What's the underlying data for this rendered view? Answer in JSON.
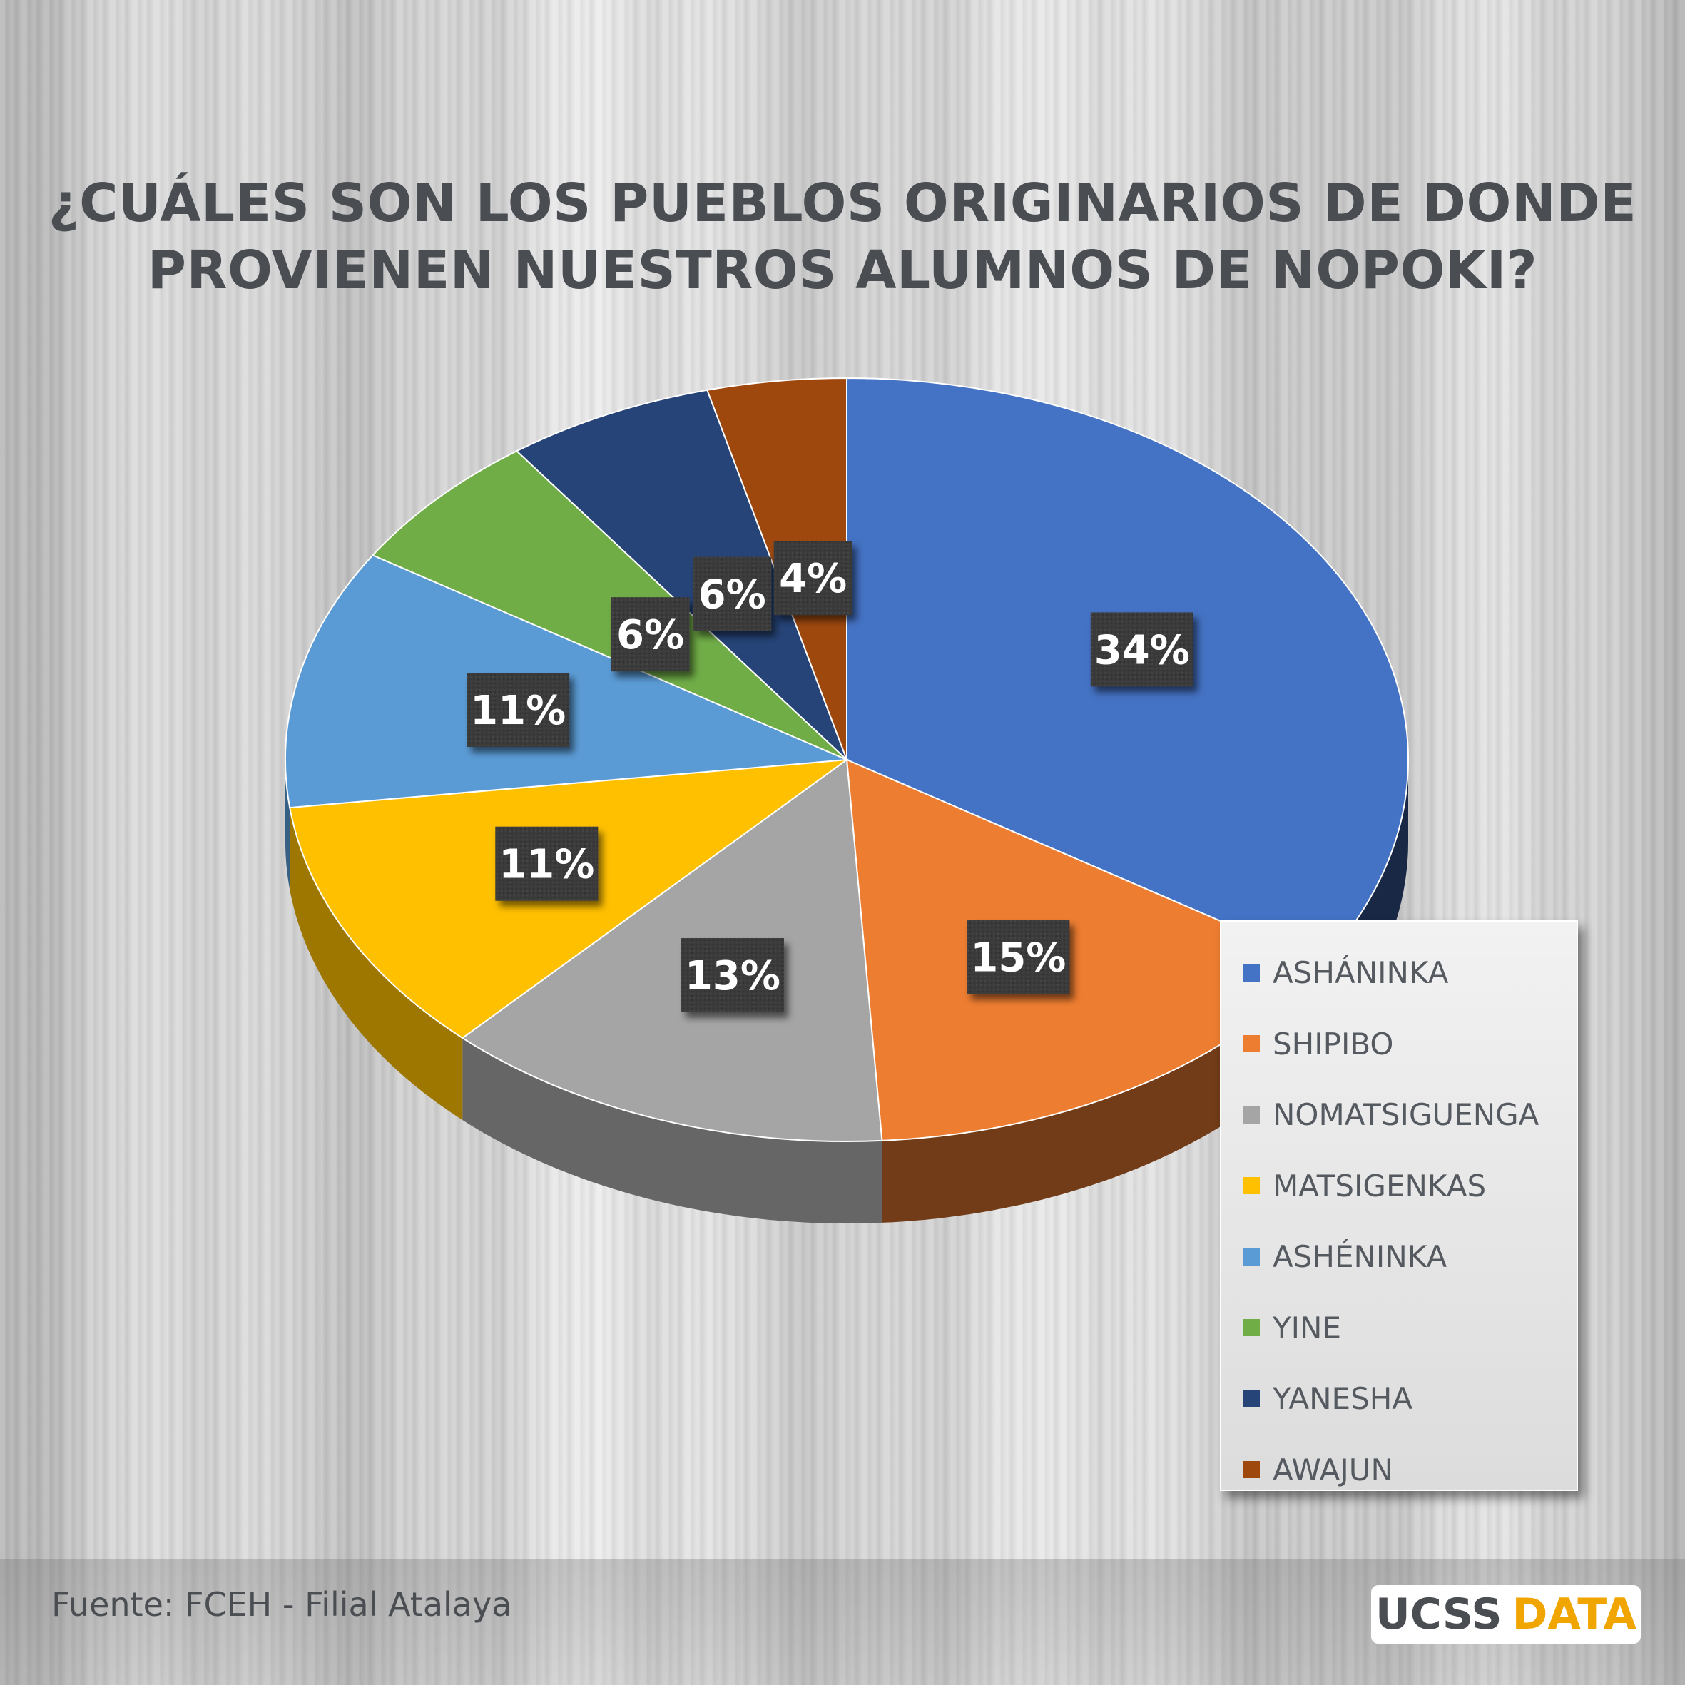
{
  "title": {
    "line1": "¿CUÁLES SON LOS PUEBLOS ORIGINARIOS DE DONDE",
    "line2": "PROVIENEN NUESTROS ALUMNOS DE NOPOKI?"
  },
  "chart_data": {
    "type": "pie",
    "style": "3d",
    "categories": [
      "ASHÁNINKA",
      "SHIPIBO",
      "NOMATSIGUENGA",
      "MATSIGENKAS",
      "ASHÉNINKA",
      "YINE",
      "YANESHA",
      "AWAJUN"
    ],
    "values": [
      34,
      15,
      13,
      11,
      11,
      6,
      6,
      4
    ],
    "labels": [
      "34%",
      "15%",
      "13%",
      "11%",
      "11%",
      "6%",
      "6%",
      "4%"
    ],
    "colors": [
      "#4472c4",
      "#ed7d31",
      "#a5a5a5",
      "#ffc000",
      "#5b9bd5",
      "#70ad47",
      "#264478",
      "#9e480e"
    ],
    "legend_position": "right"
  },
  "footer": {
    "source": "Fuente: FCEH - Filial Atalaya",
    "brand_left": "UCSS",
    "brand_right": "DATA"
  }
}
